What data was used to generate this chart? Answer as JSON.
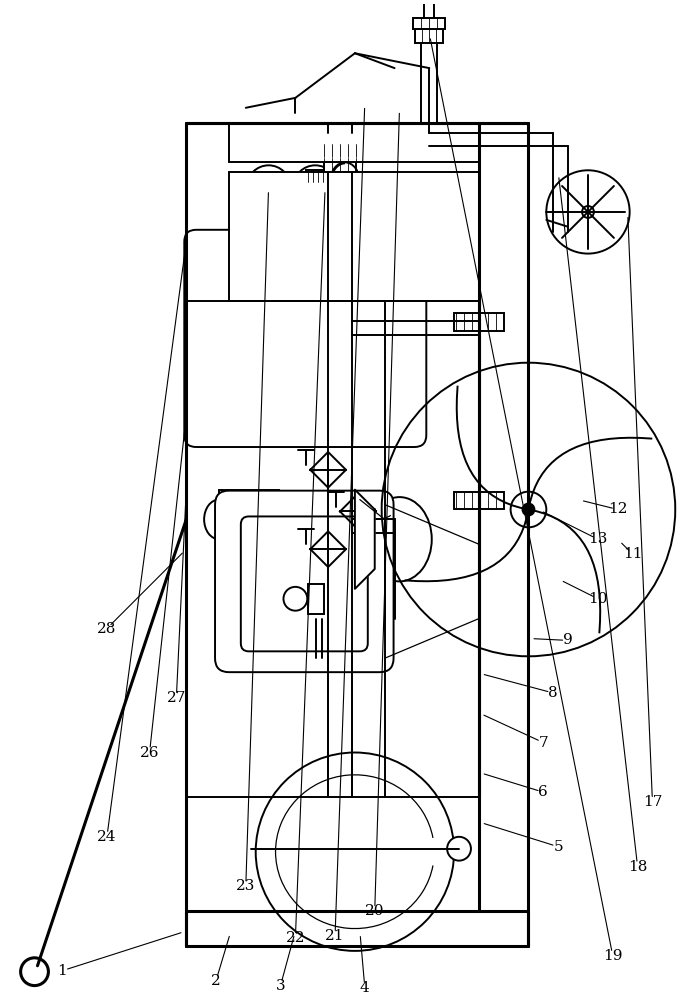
{
  "bg_color": "#ffffff",
  "lc": "#000000",
  "lw": 1.4,
  "lw_thick": 2.2,
  "lw_thin": 0.9,
  "fw": 6.83,
  "fh": 10.0
}
